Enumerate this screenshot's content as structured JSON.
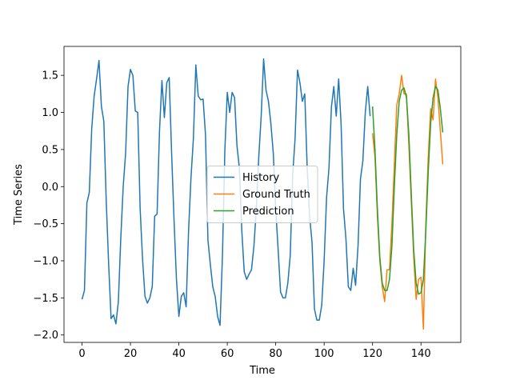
{
  "chart_data": {
    "type": "line",
    "xlabel": "Time",
    "ylabel": "Time Series",
    "xlim": [
      -7.45,
      156.45
    ],
    "ylim": [
      -2.1,
      1.89
    ],
    "xticks": [
      0,
      20,
      40,
      60,
      80,
      100,
      120,
      140
    ],
    "yticks": [
      {
        "value": -2.0,
        "label": "−2.0"
      },
      {
        "value": -1.5,
        "label": "−1.5"
      },
      {
        "value": -1.0,
        "label": "−1.0"
      },
      {
        "value": -0.5,
        "label": "−0.5"
      },
      {
        "value": 0.0,
        "label": "0.0"
      },
      0.5,
      {
        "value": 1.0,
        "label": "1.0"
      },
      1.5
    ],
    "legend": "center",
    "series": [
      {
        "name": "History",
        "color": "#1f77b4",
        "x": [
          0,
          1,
          2,
          3,
          4,
          5,
          6,
          7,
          8,
          9,
          10,
          11,
          12,
          13,
          14,
          15,
          16,
          17,
          18,
          19,
          20,
          21,
          22,
          23,
          24,
          25,
          26,
          27,
          28,
          29,
          30,
          31,
          32,
          33,
          34,
          35,
          36,
          37,
          38,
          39,
          40,
          41,
          42,
          43,
          44,
          45,
          46,
          47,
          48,
          49,
          50,
          51,
          52,
          53,
          54,
          55,
          56,
          57,
          58,
          59,
          60,
          61,
          62,
          63,
          64,
          65,
          66,
          67,
          68,
          69,
          70,
          71,
          72,
          73,
          74,
          75,
          76,
          77,
          78,
          79,
          80,
          81,
          82,
          83,
          84,
          85,
          86,
          87,
          88,
          89,
          90,
          91,
          92,
          93,
          94,
          95,
          96,
          97,
          98,
          99,
          100,
          101,
          102,
          103,
          104,
          105,
          106,
          107,
          108,
          109,
          110,
          111,
          112,
          113,
          114,
          115,
          116,
          117,
          118,
          119
        ],
        "values": [
          -1.52,
          -1.4,
          -0.22,
          -0.08,
          0.78,
          1.22,
          1.45,
          1.7,
          1.08,
          0.88,
          -0.2,
          -1.05,
          -1.78,
          -1.73,
          -1.85,
          -1.55,
          -0.7,
          0.0,
          0.45,
          1.35,
          1.58,
          1.5,
          1.02,
          1.0,
          -0.3,
          -0.98,
          -1.48,
          -1.57,
          -1.5,
          -1.35,
          -0.4,
          -0.37,
          0.75,
          1.43,
          0.93,
          1.4,
          1.47,
          0.45,
          -0.45,
          -1.25,
          -1.75,
          -1.48,
          -1.43,
          -1.62,
          -0.6,
          0.12,
          0.65,
          1.64,
          1.22,
          1.17,
          1.18,
          0.7,
          -0.72,
          -1.05,
          -1.35,
          -1.48,
          -1.75,
          -1.87,
          -0.93,
          0.5,
          1.27,
          1.0,
          1.27,
          1.2,
          0.55,
          0.25,
          -0.6,
          -1.15,
          -1.25,
          -1.18,
          -1.12,
          -0.8,
          -0.3,
          0.4,
          0.95,
          1.72,
          1.3,
          1.15,
          0.85,
          0.45,
          -0.3,
          -0.85,
          -1.42,
          -1.5,
          -1.5,
          -1.3,
          -0.93,
          0.15,
          0.65,
          1.57,
          1.4,
          1.15,
          1.25,
          0.25,
          -0.4,
          -0.75,
          -1.65,
          -1.8,
          -1.8,
          -1.6,
          -1.0,
          -0.15,
          0.25,
          1.07,
          1.35,
          0.95,
          1.45,
          0.85,
          -0.3,
          -0.7,
          -1.35,
          -1.4,
          -1.1,
          -1.33,
          -0.8,
          0.1,
          0.35,
          1.0,
          1.35,
          0.95
        ]
      },
      {
        "name": "Ground Truth",
        "color": "#ff7f0e",
        "x": [
          120,
          121,
          122,
          123,
          124,
          125,
          126,
          127,
          128,
          129,
          130,
          131,
          132,
          133,
          134,
          135,
          136,
          137,
          138,
          139,
          140,
          141,
          142,
          143,
          144,
          145,
          146,
          147,
          148,
          149
        ],
        "values": [
          0.72,
          0.4,
          -0.4,
          -1.0,
          -1.35,
          -1.55,
          -1.12,
          -1.12,
          -0.5,
          0.3,
          1.1,
          1.25,
          1.5,
          1.25,
          1.25,
          0.55,
          -0.2,
          -0.95,
          -1.52,
          -1.25,
          -1.22,
          -1.92,
          -0.5,
          0.4,
          1.05,
          0.9,
          1.45,
          1.2,
          0.75,
          0.3
        ]
      },
      {
        "name": "Prediction",
        "color": "#2ca02c",
        "x": [
          120,
          121,
          122,
          123,
          124,
          125,
          126,
          127,
          128,
          129,
          130,
          131,
          132,
          133,
          134,
          135,
          136,
          137,
          138,
          139,
          140,
          141,
          142,
          143,
          144,
          145,
          146,
          147,
          148,
          149
        ],
        "values": [
          1.08,
          0.5,
          -0.3,
          -0.95,
          -1.3,
          -1.4,
          -1.4,
          -1.25,
          -0.8,
          0.0,
          0.7,
          1.15,
          1.3,
          1.33,
          1.2,
          0.7,
          -0.1,
          -0.85,
          -1.3,
          -1.45,
          -1.43,
          -1.25,
          -0.6,
          0.2,
          0.85,
          1.2,
          1.35,
          1.3,
          1.05,
          0.73
        ]
      }
    ]
  }
}
